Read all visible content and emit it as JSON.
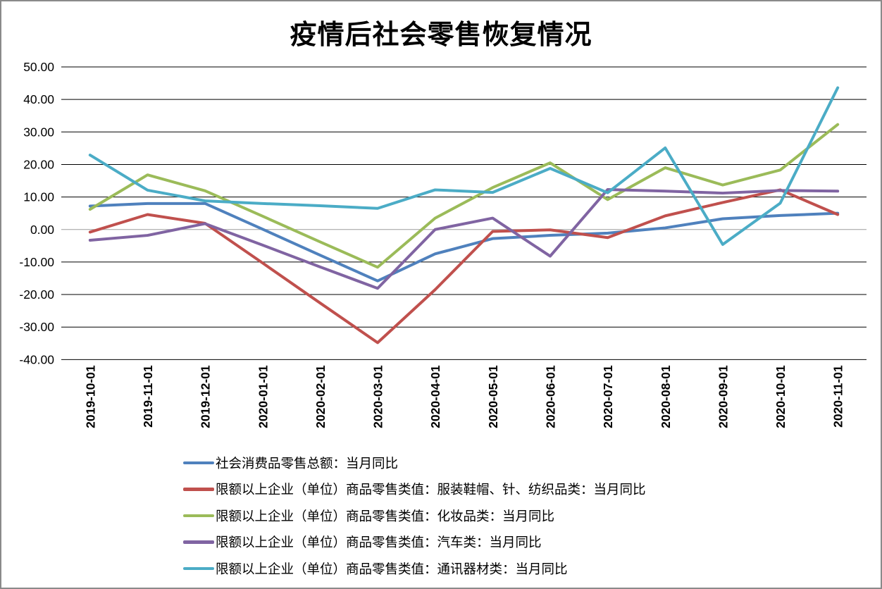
{
  "frame": {
    "background": "#ffffff",
    "border_color": "#8a8a8a"
  },
  "title": "疫情后社会零售恢复情况",
  "chart_data": {
    "type": "line",
    "title": "疫情后社会零售恢复情况",
    "xlabel": "",
    "ylabel": "",
    "ylim": [
      -40,
      50
    ],
    "ytick_step": 10,
    "ytick_decimals": 2,
    "grid": "horizontal",
    "gridline_color": "#000000",
    "zero_axis_color": "#9c9c9c",
    "legend_position": "bottom-left",
    "categories": [
      "2019-10-01",
      "2019-11-01",
      "2019-12-01",
      "2020-01-01",
      "2020-02-01",
      "2020-03-01",
      "2020-04-01",
      "2020-05-01",
      "2020-06-01",
      "2020-07-01",
      "2020-08-01",
      "2020-09-01",
      "2020-10-01",
      "2020-11-01"
    ],
    "series": [
      {
        "name": "社会消费品零售总额：当月同比",
        "color": "#4F81BD",
        "values": [
          7.2,
          8.0,
          8.0,
          0.1,
          -7.9,
          -15.8,
          -7.5,
          -2.8,
          -1.8,
          -1.1,
          0.5,
          3.3,
          4.3,
          5.0
        ]
      },
      {
        "name": "限额以上企业（单位）商品零售类值：服装鞋帽、针、纺织品类：当月同比",
        "color": "#C0504D",
        "values": [
          -0.8,
          4.6,
          1.9,
          -10.3,
          -22.6,
          -34.8,
          -18.5,
          -0.6,
          -0.1,
          -2.5,
          4.2,
          8.3,
          12.2,
          4.6
        ]
      },
      {
        "name": "限额以上企业（单位）商品零售类值：化妆品类：当月同比",
        "color": "#9BBB59",
        "values": [
          6.2,
          16.8,
          11.9,
          4.1,
          -3.8,
          -11.6,
          3.5,
          12.9,
          20.5,
          9.2,
          19.0,
          13.7,
          18.3,
          32.3
        ]
      },
      {
        "name": "限额以上企业（单位）商品零售类值：汽车类：当月同比",
        "color": "#8064A2",
        "values": [
          -3.3,
          -1.8,
          1.8,
          -4.8,
          -11.5,
          -18.1,
          0.0,
          3.5,
          -8.2,
          12.3,
          11.8,
          11.2,
          12.0,
          11.8
        ]
      },
      {
        "name": "限额以上企业（单位）商品零售类值：通讯器材类：当月同比",
        "color": "#4BACC6",
        "values": [
          22.9,
          12.1,
          8.8,
          8.0,
          7.3,
          6.5,
          12.2,
          11.4,
          18.8,
          11.3,
          25.1,
          -4.6,
          8.1,
          43.6
        ]
      }
    ]
  }
}
